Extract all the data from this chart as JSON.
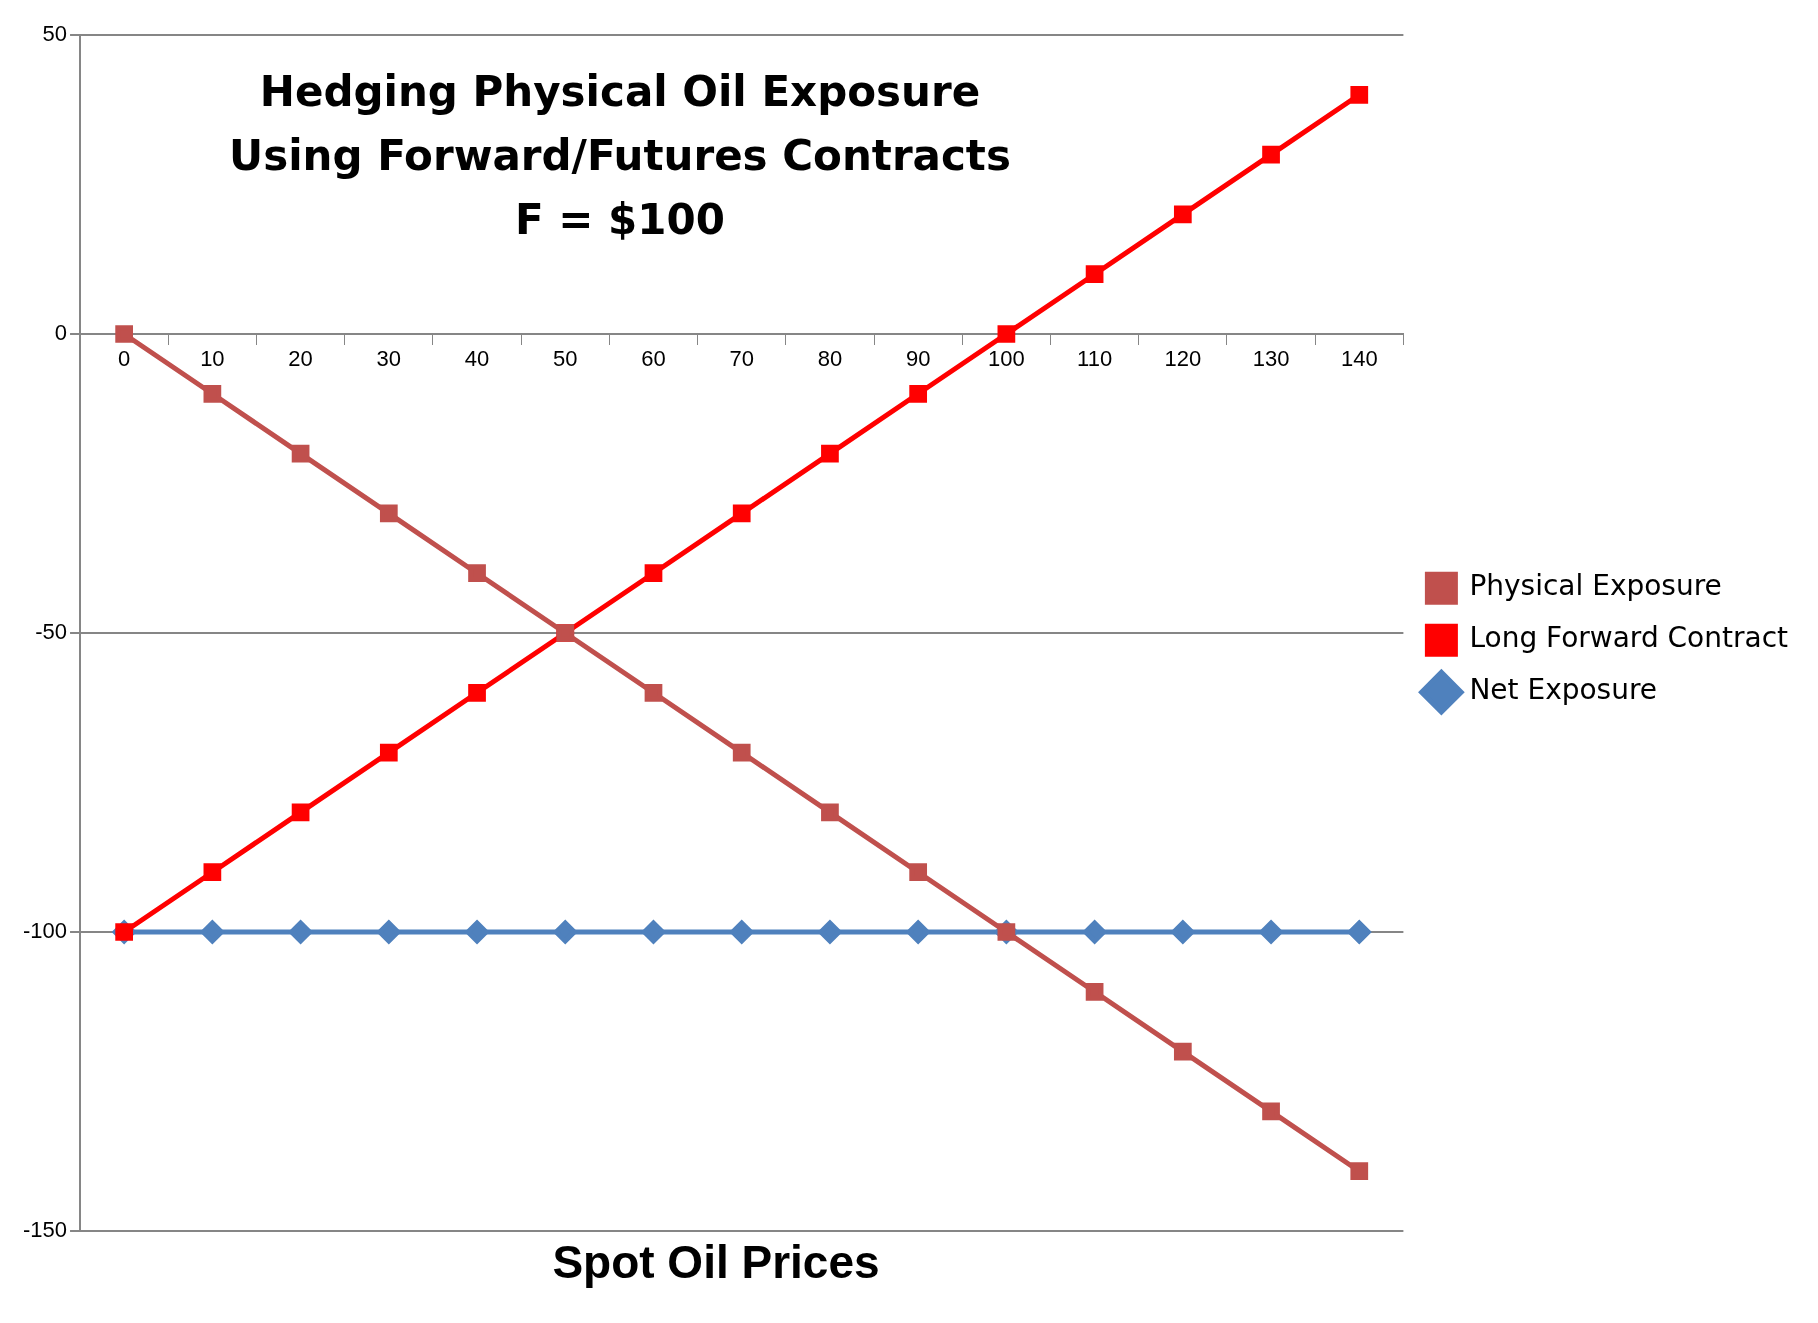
{
  "chart_data": {
    "type": "line",
    "title": "Hedging Physical Oil Exposure\nUsing Forward/Futures Contracts\nF = $100",
    "xlabel": "Spot Oil Prices",
    "categories": [
      "0",
      "10",
      "20",
      "30",
      "40",
      "50",
      "60",
      "70",
      "80",
      "90",
      "100",
      "110",
      "120",
      "130",
      "140"
    ],
    "series": [
      {
        "name": "Physical Exposure",
        "color": "#c0504d",
        "marker": "square",
        "values": [
          0,
          -10,
          -20,
          -30,
          -40,
          -50,
          -60,
          -70,
          -80,
          -90,
          -100,
          -110,
          -120,
          -130,
          -140
        ]
      },
      {
        "name": "Long Forward Contract",
        "color": "#ff0000",
        "marker": "square",
        "values": [
          -100,
          -90,
          -80,
          -70,
          -60,
          -50,
          -40,
          -30,
          -20,
          -10,
          0,
          10,
          20,
          30,
          40
        ]
      },
      {
        "name": "Net Exposure",
        "color": "#4f81bd",
        "marker": "diamond",
        "values": [
          -100,
          -100,
          -100,
          -100,
          -100,
          -100,
          -100,
          -100,
          -100,
          -100,
          -100,
          -100,
          -100,
          -100,
          -100
        ]
      }
    ],
    "ylim": [
      -150,
      50
    ],
    "yticks": [
      -150,
      -100,
      -50,
      0,
      50
    ],
    "grid": "y",
    "legend": "right",
    "line_style": "solid"
  }
}
